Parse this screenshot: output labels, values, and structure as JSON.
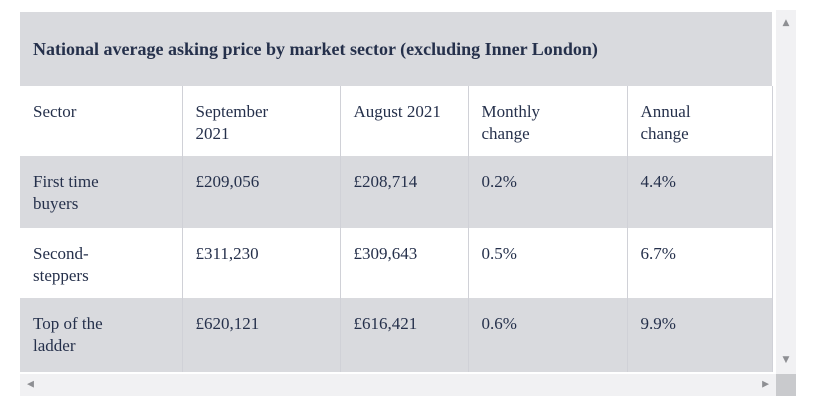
{
  "title": "National average asking price by market sector (excluding Inner London)",
  "table": {
    "columns": [
      "Sector",
      "September 2021",
      "August 2021",
      "Monthly change",
      "Annual change"
    ],
    "rows": [
      {
        "cells": [
          "First time buyers",
          "£209,056",
          "£208,714",
          "0.2%",
          "4.4%"
        ]
      },
      {
        "cells": [
          "Second-steppers",
          "£311,230",
          "£309,643",
          "0.5%",
          "6.7%"
        ]
      },
      {
        "cells": [
          "Top of the ladder",
          "£620,121",
          "£616,421",
          "0.6%",
          "9.9%"
        ]
      }
    ]
  },
  "icons": {
    "scroll_up": "▲",
    "scroll_down": "▼",
    "scroll_left": "◀",
    "scroll_right": "▶"
  },
  "colors": {
    "text": "#25304b",
    "band": "#d9dade",
    "row-alt": "#d9dade",
    "border": "#d0d1d7",
    "scroll-track": "#f1f1f3",
    "scroll-arrow": "#8e8f93",
    "scroll-corner": "#c9cacd",
    "page-bg": "#ffffff"
  }
}
